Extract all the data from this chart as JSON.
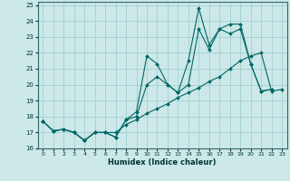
{
  "xlabel": "Humidex (Indice chaleur)",
  "xlim": [
    -0.5,
    23.5
  ],
  "ylim": [
    16,
    25.2
  ],
  "yticks": [
    16,
    17,
    18,
    19,
    20,
    21,
    22,
    23,
    24,
    25
  ],
  "xticks": [
    0,
    1,
    2,
    3,
    4,
    5,
    6,
    7,
    8,
    9,
    10,
    11,
    12,
    13,
    14,
    15,
    16,
    17,
    18,
    19,
    20,
    21,
    22,
    23
  ],
  "bg_color": "#cce8e8",
  "grid_color": "#99cccc",
  "line_color": "#006666",
  "series1_x": [
    0,
    1,
    2,
    3,
    4,
    5,
    6,
    7,
    8,
    9,
    10,
    11,
    12,
    13,
    14,
    15,
    16,
    17,
    18,
    19,
    20,
    21,
    22
  ],
  "series1_y": [
    17.7,
    17.1,
    17.2,
    17.0,
    16.5,
    17.0,
    17.0,
    16.7,
    17.8,
    18.3,
    21.8,
    21.3,
    20.0,
    19.5,
    21.5,
    24.8,
    22.5,
    23.5,
    23.8,
    23.8,
    21.3,
    19.6,
    19.7
  ],
  "series2_x": [
    0,
    1,
    2,
    3,
    4,
    5,
    6,
    7,
    8,
    9,
    10,
    11,
    12,
    13,
    14,
    15,
    16,
    17,
    18,
    19,
    20,
    21,
    22
  ],
  "series2_y": [
    17.7,
    17.1,
    17.2,
    17.0,
    16.5,
    17.0,
    17.0,
    16.7,
    17.8,
    18.0,
    20.0,
    20.5,
    20.0,
    19.5,
    20.0,
    23.5,
    22.2,
    23.5,
    23.2,
    23.5,
    21.3,
    19.6,
    19.7
  ],
  "series3_x": [
    0,
    1,
    2,
    3,
    4,
    5,
    6,
    7,
    8,
    9,
    10,
    11,
    12,
    13,
    14,
    15,
    16,
    17,
    18,
    19,
    20,
    21,
    22,
    23
  ],
  "series3_y": [
    17.7,
    17.1,
    17.2,
    17.0,
    16.5,
    17.0,
    17.0,
    17.0,
    17.5,
    17.8,
    18.2,
    18.5,
    18.8,
    19.2,
    19.5,
    19.8,
    20.2,
    20.5,
    21.0,
    21.5,
    21.8,
    22.0,
    19.6,
    19.7
  ]
}
